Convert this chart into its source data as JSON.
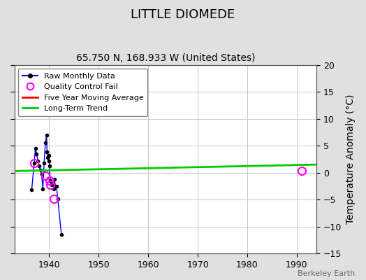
{
  "title": "LITTLE DIOMEDE",
  "subtitle": "65.750 N, 168.933 W (United States)",
  "ylabel_right": "Temperature Anomaly (°C)",
  "watermark": "Berkeley Earth",
  "xlim": [
    1933,
    1994
  ],
  "ylim": [
    -15,
    20
  ],
  "yticks": [
    -15,
    -10,
    -5,
    0,
    5,
    10,
    15,
    20
  ],
  "xticks": [
    1940,
    1950,
    1960,
    1970,
    1980,
    1990
  ],
  "background_color": "#e0e0e0",
  "plot_bg_color": "#ffffff",
  "grid_color": "#c8c8c8",
  "raw_data_x": [
    1936.5,
    1937.0,
    1937.25,
    1937.5,
    1937.75,
    1938.0,
    1938.25,
    1938.5,
    1938.75,
    1939.0,
    1939.25,
    1939.5,
    1939.6,
    1939.75,
    1939.9,
    1940.0,
    1940.1,
    1940.25,
    1940.5,
    1940.6,
    1940.75,
    1941.0,
    1941.1,
    1941.25,
    1941.5,
    1941.75,
    1942.5
  ],
  "raw_data_y": [
    -3.2,
    1.8,
    4.5,
    3.5,
    2.2,
    1.2,
    0.5,
    -0.3,
    -3.0,
    1.8,
    5.5,
    7.0,
    3.8,
    2.8,
    3.2,
    2.2,
    1.2,
    -1.5,
    -2.2,
    -1.8,
    -2.0,
    -3.0,
    -1.2,
    -2.5,
    -2.5,
    -4.8,
    -11.5
  ],
  "qc_fail_x": [
    1937.0,
    1939.25,
    1940.1,
    1940.25,
    1941.0,
    1991.0
  ],
  "qc_fail_y": [
    1.8,
    -0.5,
    -1.5,
    -2.2,
    -4.8,
    0.3
  ],
  "trend_x": [
    1933,
    1994
  ],
  "trend_y": [
    0.3,
    1.5
  ],
  "raw_color": "#0000ff",
  "raw_marker_color": "#000000",
  "qc_color": "#ff00ff",
  "trend_color": "#00cc00",
  "mavg_color": "#ff0000",
  "title_fontsize": 13,
  "subtitle_fontsize": 10,
  "tick_fontsize": 9,
  "label_fontsize": 10
}
